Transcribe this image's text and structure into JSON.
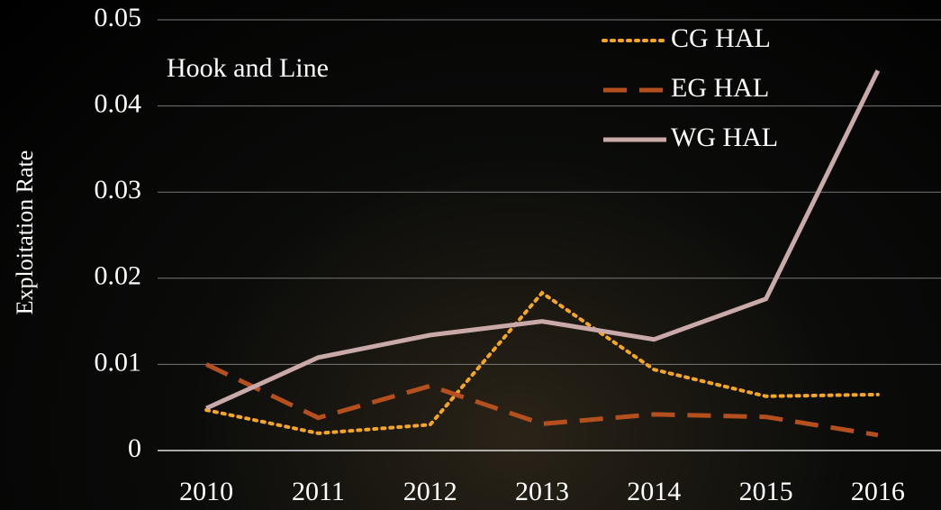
{
  "chart_data": {
    "type": "line",
    "annotation": "Hook and Line",
    "y_label": "Exploitation Rate",
    "categories": [
      "2010",
      "2011",
      "2012",
      "2013",
      "2014",
      "2015",
      "2016"
    ],
    "series": [
      {
        "name": "CG HAL",
        "color": "#f5a623",
        "dash": "dotted",
        "values": [
          0.0047,
          0.002,
          0.003,
          0.0183,
          0.0094,
          0.0063,
          0.0065
        ]
      },
      {
        "name": "EG HAL",
        "color": "#b5501e",
        "dash": "dashed",
        "values": [
          0.01,
          0.0038,
          0.0075,
          0.0031,
          0.0042,
          0.0039,
          0.0018
        ]
      },
      {
        "name": "WG HAL",
        "color": "#c9aaa8",
        "dash": "solid",
        "values": [
          0.0049,
          0.0108,
          0.0134,
          0.015,
          0.0129,
          0.0176,
          0.0441
        ]
      }
    ],
    "ylim": [
      0,
      0.05
    ],
    "yticks": [
      0,
      0.01,
      0.02,
      0.03,
      0.04,
      0.05
    ],
    "grid": true,
    "legend": "top-right"
  }
}
